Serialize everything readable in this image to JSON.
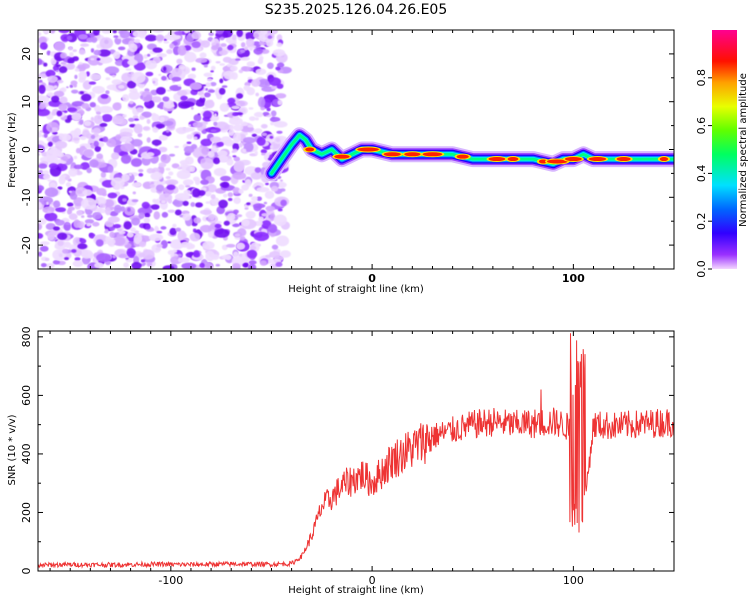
{
  "title": "S235.2025.126.04.26.E05",
  "chart_data": [
    {
      "type": "heatmap",
      "name": "spectrogram",
      "xlabel": "Height of straight line (km)",
      "ylabel": "Frequency (Hz)",
      "xlim": [
        -166,
        150
      ],
      "ylim": [
        -25,
        25
      ],
      "x_ticks": [
        -100,
        0,
        100
      ],
      "y_ticks": [
        -20,
        -10,
        0,
        10,
        20
      ],
      "noise_region_x": [
        -166,
        -43
      ],
      "signal_track": {
        "x": [
          -50,
          -45,
          -40,
          -36,
          -33,
          -30,
          -25,
          -20,
          -15,
          -10,
          -5,
          0,
          10,
          20,
          30,
          40,
          50,
          60,
          70,
          80,
          90,
          95,
          100,
          105,
          110,
          120,
          130,
          140,
          150
        ],
        "frequency": [
          -5,
          -2,
          1,
          3,
          2,
          0,
          -1,
          0,
          -2,
          -1,
          0,
          0,
          -1,
          -1,
          -1,
          -1,
          -2,
          -2,
          -2,
          -2,
          -3,
          -2,
          -2,
          -1,
          -2,
          -2,
          -2,
          -2,
          -2
        ]
      },
      "colorbar": {
        "label": "Normalized spectral amplitude",
        "range": [
          0.0,
          1.0
        ],
        "ticks": [
          0.0,
          0.2,
          0.4,
          0.6,
          0.8
        ],
        "tick_labels": [
          "0.0",
          "0.2",
          "0.4",
          "0.6",
          "0.8"
        ],
        "colormap": "hsv (purple→blue→cyan→green→yellow→orange→red→magenta)"
      },
      "grid": false
    },
    {
      "type": "line",
      "name": "snr",
      "xlabel": "Height of straight line (km)",
      "ylabel": "SNR (10 * v/v)",
      "xlim": [
        -166,
        150
      ],
      "ylim": [
        0,
        820
      ],
      "x_ticks": [
        -100,
        0,
        100
      ],
      "y_ticks": [
        0,
        200,
        400,
        600,
        800
      ],
      "series": [
        {
          "color": "#ee3333",
          "x": [
            -166,
            -150,
            -130,
            -110,
            -90,
            -70,
            -50,
            -40,
            -35,
            -30,
            -25,
            -22,
            -20,
            -15,
            -10,
            -5,
            0,
            5,
            10,
            15,
            20,
            25,
            30,
            40,
            50,
            60,
            70,
            80,
            90,
            95,
            100,
            102,
            105,
            110,
            120,
            130,
            140,
            150
          ],
          "y": [
            20,
            22,
            21,
            23,
            22,
            24,
            23,
            25,
            50,
            120,
            220,
            240,
            250,
            290,
            310,
            330,
            300,
            340,
            380,
            400,
            420,
            440,
            460,
            480,
            500,
            510,
            500,
            505,
            510,
            500,
            480,
            780,
            200,
            500,
            495,
            500,
            505,
            510
          ]
        }
      ],
      "grid": false
    }
  ]
}
